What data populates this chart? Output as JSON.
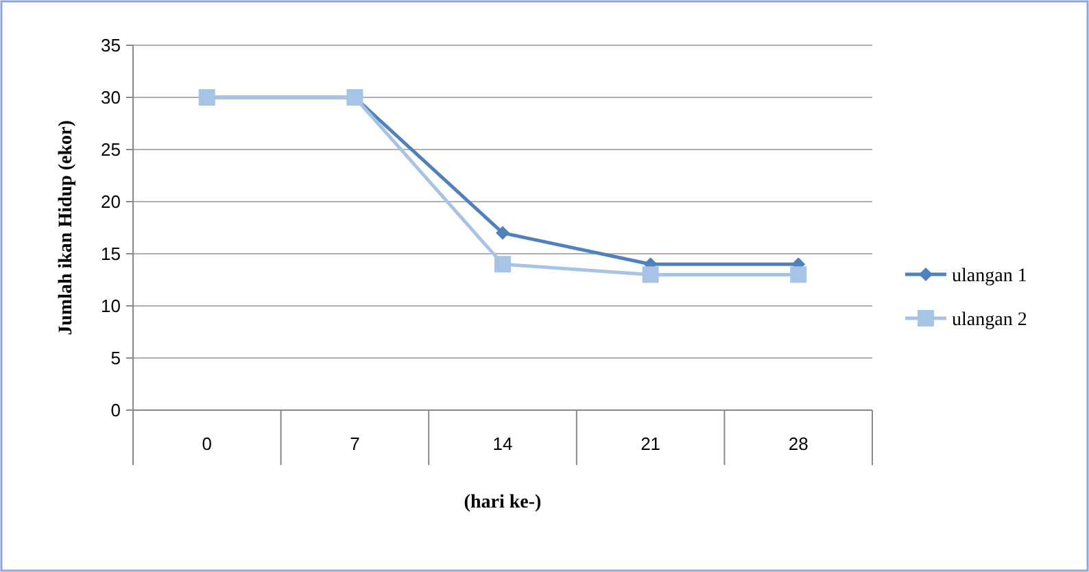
{
  "chart_data": {
    "type": "line",
    "xlabel": "(hari ke-)",
    "ylabel": "Jumlah ikan Hidup (ekor)",
    "categories": [
      "0",
      "7",
      "14",
      "21",
      "28"
    ],
    "series": [
      {
        "name": "ulangan 1",
        "color": "#4f81bd",
        "marker": "diamond",
        "values": [
          30,
          30,
          17,
          14,
          14
        ]
      },
      {
        "name": "ulangan 2",
        "color": "#a7c4e6",
        "marker": "square",
        "values": [
          30,
          30,
          14,
          13,
          13
        ]
      }
    ],
    "ylim": [
      0,
      35
    ],
    "yticks": [
      0,
      5,
      10,
      15,
      20,
      25,
      30,
      35
    ],
    "grid": "y",
    "legend": "right"
  }
}
